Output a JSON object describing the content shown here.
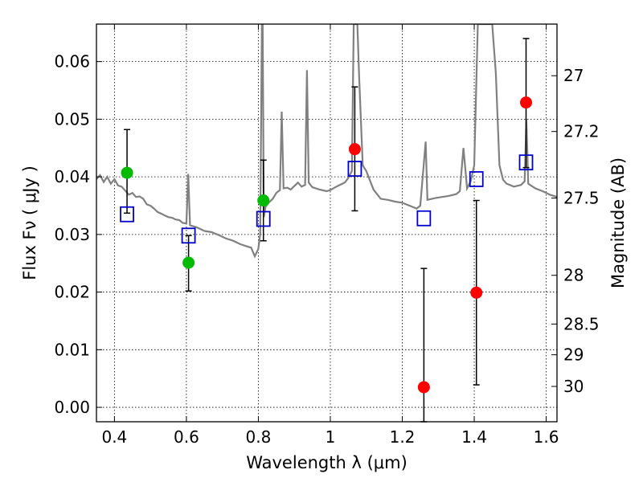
{
  "chart_data": {
    "type": "scatter",
    "xlabel": "Wavelength  λ (μm)",
    "ylabel": "Flux  Fν  ( μJy )",
    "y2label": "Magnitude (AB)",
    "xlim": [
      0.35,
      1.63
    ],
    "ylim": [
      -0.0025,
      0.0665
    ],
    "x_ticks": [
      0.4,
      0.6,
      0.8,
      1.0,
      1.2,
      1.4,
      1.6
    ],
    "x_tick_labels": [
      "0.4",
      "0.6",
      "0.8",
      "1",
      "1.2",
      "1.4",
      "1.6"
    ],
    "y_ticks": [
      0.0,
      0.01,
      0.02,
      0.03,
      0.04,
      0.05,
      0.06
    ],
    "y_tick_labels": [
      "0.00",
      "0.01",
      "0.02",
      "0.03",
      "0.04",
      "0.05",
      "0.06"
    ],
    "mag_ticks": [
      27,
      27.2,
      27.5,
      28,
      28.5,
      29,
      30
    ],
    "mag_tick_labels": [
      "27",
      "27.2",
      "27.5",
      "28",
      "28.5",
      "29",
      "30"
    ],
    "grid": true,
    "colors": {
      "detection": "#00bb00",
      "nondetection": "#ff0000",
      "model": "#0000cc",
      "spectrum": "#808080"
    },
    "observed_points": [
      {
        "x": 0.435,
        "y": 0.0407,
        "err_low": 0.0337,
        "err_high": 0.0482,
        "color": "green"
      },
      {
        "x": 0.606,
        "y": 0.0251,
        "err_low": 0.0202,
        "err_high": 0.0298,
        "color": "green"
      },
      {
        "x": 0.814,
        "y": 0.0359,
        "err_low": 0.0289,
        "err_high": 0.0429,
        "color": "green"
      },
      {
        "x": 1.068,
        "y": 0.0448,
        "err_low": 0.0341,
        "err_high": 0.0556,
        "color": "red"
      },
      {
        "x": 1.26,
        "y": 0.0035,
        "err_low": -0.0025,
        "err_high": 0.0241,
        "color": "red"
      },
      {
        "x": 1.406,
        "y": 0.0199,
        "err_low": 0.0039,
        "err_high": 0.0359,
        "color": "red"
      },
      {
        "x": 1.544,
        "y": 0.0529,
        "err_low": 0.0416,
        "err_high": 0.064,
        "color": "red"
      }
    ],
    "model_points": [
      {
        "x": 0.435,
        "y": 0.0335
      },
      {
        "x": 0.606,
        "y": 0.0298
      },
      {
        "x": 0.814,
        "y": 0.0327
      },
      {
        "x": 1.068,
        "y": 0.0414
      },
      {
        "x": 1.26,
        "y": 0.0328
      },
      {
        "x": 1.406,
        "y": 0.0396
      },
      {
        "x": 1.544,
        "y": 0.0425
      }
    ],
    "spectrum": [
      [
        0.35,
        0.0396
      ],
      [
        0.36,
        0.0403
      ],
      [
        0.37,
        0.0391
      ],
      [
        0.38,
        0.04
      ],
      [
        0.39,
        0.0388
      ],
      [
        0.4,
        0.0396
      ],
      [
        0.41,
        0.0385
      ],
      [
        0.42,
        0.0383
      ],
      [
        0.43,
        0.0376
      ],
      [
        0.44,
        0.0369
      ],
      [
        0.45,
        0.0372
      ],
      [
        0.46,
        0.0365
      ],
      [
        0.47,
        0.0366
      ],
      [
        0.48,
        0.0362
      ],
      [
        0.49,
        0.0352
      ],
      [
        0.5,
        0.035
      ],
      [
        0.51,
        0.0345
      ],
      [
        0.52,
        0.0339
      ],
      [
        0.53,
        0.0336
      ],
      [
        0.54,
        0.0333
      ],
      [
        0.55,
        0.033
      ],
      [
        0.56,
        0.0329
      ],
      [
        0.57,
        0.0326
      ],
      [
        0.58,
        0.0325
      ],
      [
        0.59,
        0.032
      ],
      [
        0.6,
        0.0319
      ],
      [
        0.605,
        0.0405
      ],
      [
        0.61,
        0.0316
      ],
      [
        0.63,
        0.0312
      ],
      [
        0.65,
        0.0306
      ],
      [
        0.67,
        0.0304
      ],
      [
        0.69,
        0.0299
      ],
      [
        0.71,
        0.0293
      ],
      [
        0.73,
        0.0289
      ],
      [
        0.75,
        0.0283
      ],
      [
        0.77,
        0.0279
      ],
      [
        0.78,
        0.0277
      ],
      [
        0.79,
        0.0262
      ],
      [
        0.8,
        0.0275
      ],
      [
        0.805,
        0.03
      ],
      [
        0.81,
        0.0665
      ],
      [
        0.812,
        0.0665
      ],
      [
        0.815,
        0.033
      ],
      [
        0.82,
        0.0348
      ],
      [
        0.83,
        0.0356
      ],
      [
        0.84,
        0.0362
      ],
      [
        0.85,
        0.0372
      ],
      [
        0.86,
        0.0377
      ],
      [
        0.865,
        0.0513
      ],
      [
        0.87,
        0.038
      ],
      [
        0.88,
        0.0381
      ],
      [
        0.89,
        0.0378
      ],
      [
        0.9,
        0.0384
      ],
      [
        0.91,
        0.039
      ],
      [
        0.92,
        0.0383
      ],
      [
        0.93,
        0.0386
      ],
      [
        0.935,
        0.0585
      ],
      [
        0.94,
        0.039
      ],
      [
        0.95,
        0.0382
      ],
      [
        0.97,
        0.0378
      ],
      [
        0.99,
        0.0375
      ],
      [
        1.0,
        0.0377
      ],
      [
        1.02,
        0.0384
      ],
      [
        1.04,
        0.039
      ],
      [
        1.05,
        0.0398
      ],
      [
        1.06,
        0.041
      ],
      [
        1.065,
        0.0665
      ],
      [
        1.075,
        0.0665
      ],
      [
        1.08,
        0.0575
      ],
      [
        1.09,
        0.042
      ],
      [
        1.1,
        0.041
      ],
      [
        1.12,
        0.0378
      ],
      [
        1.14,
        0.0362
      ],
      [
        1.16,
        0.036
      ],
      [
        1.18,
        0.0357
      ],
      [
        1.2,
        0.0355
      ],
      [
        1.22,
        0.035
      ],
      [
        1.24,
        0.0345
      ],
      [
        1.25,
        0.035
      ],
      [
        1.265,
        0.0461
      ],
      [
        1.27,
        0.036
      ],
      [
        1.29,
        0.0363
      ],
      [
        1.31,
        0.0365
      ],
      [
        1.33,
        0.0367
      ],
      [
        1.35,
        0.037
      ],
      [
        1.36,
        0.0375
      ],
      [
        1.37,
        0.045
      ],
      [
        1.38,
        0.038
      ],
      [
        1.39,
        0.0392
      ],
      [
        1.4,
        0.042
      ],
      [
        1.41,
        0.0665
      ],
      [
        1.43,
        0.0665
      ],
      [
        1.45,
        0.0665
      ],
      [
        1.46,
        0.058
      ],
      [
        1.47,
        0.042
      ],
      [
        1.48,
        0.0395
      ],
      [
        1.49,
        0.0388
      ],
      [
        1.51,
        0.0383
      ],
      [
        1.53,
        0.0386
      ],
      [
        1.54,
        0.0392
      ],
      [
        1.545,
        0.05
      ],
      [
        1.55,
        0.0388
      ],
      [
        1.57,
        0.038
      ],
      [
        1.59,
        0.0375
      ],
      [
        1.61,
        0.0369
      ],
      [
        1.63,
        0.0365
      ]
    ]
  }
}
